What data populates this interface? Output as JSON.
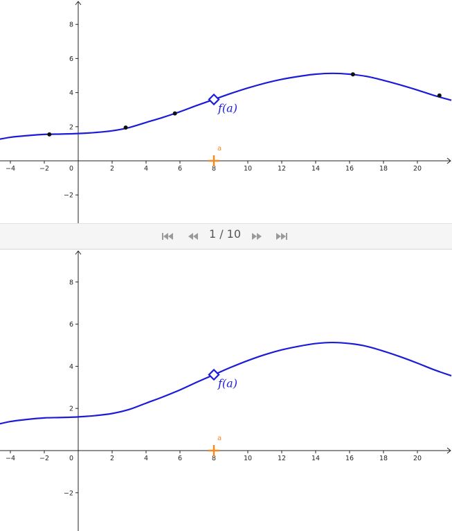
{
  "toolbar": {
    "page_indicator": "1 / 10",
    "buttons": [
      "first-icon",
      "previous-icon",
      "next-icon",
      "last-icon"
    ]
  },
  "graph": {
    "x_ticks": [
      -4,
      -2,
      0,
      2,
      4,
      6,
      8,
      10,
      12,
      14,
      16,
      18,
      20
    ],
    "top_y_ticks": [
      -2,
      2,
      4,
      6,
      8
    ],
    "bottom_y_ticks": [
      -2,
      2,
      4,
      6,
      8
    ],
    "curve_color": "#1b1bd8",
    "point_a_color": "#f08a24",
    "point_a_label": "a",
    "point_fa_label": "f(a)",
    "a_value": 8,
    "fa_value": 3.6,
    "curve_points": [
      [
        -5,
        1.2
      ],
      [
        -4,
        1.38
      ],
      [
        -3,
        1.48
      ],
      [
        -2,
        1.55
      ],
      [
        -1,
        1.57
      ],
      [
        0,
        1.6
      ],
      [
        1,
        1.66
      ],
      [
        2,
        1.76
      ],
      [
        3,
        1.95
      ],
      [
        4,
        2.25
      ],
      [
        5,
        2.55
      ],
      [
        6,
        2.88
      ],
      [
        7,
        3.25
      ],
      [
        8,
        3.6
      ],
      [
        9,
        3.95
      ],
      [
        10,
        4.27
      ],
      [
        11,
        4.55
      ],
      [
        12,
        4.78
      ],
      [
        13,
        4.95
      ],
      [
        14,
        5.08
      ],
      [
        15,
        5.13
      ],
      [
        16,
        5.08
      ],
      [
        17,
        4.95
      ],
      [
        18,
        4.72
      ],
      [
        19,
        4.45
      ],
      [
        20,
        4.15
      ],
      [
        21,
        3.83
      ],
      [
        22,
        3.55
      ]
    ],
    "sample_points": [
      [
        -1.7,
        1.55
      ],
      [
        2.8,
        1.95
      ],
      [
        5.7,
        2.78
      ],
      [
        16.2,
        5.07
      ],
      [
        21.3,
        3.83
      ]
    ]
  }
}
